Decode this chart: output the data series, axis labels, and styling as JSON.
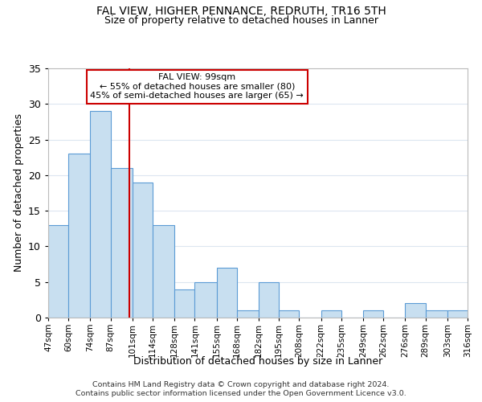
{
  "title1": "FAL VIEW, HIGHER PENNANCE, REDRUTH, TR16 5TH",
  "title2": "Size of property relative to detached houses in Lanner",
  "xlabel": "Distribution of detached houses by size in Lanner",
  "ylabel": "Number of detached properties",
  "bar_color": "#c8dff0",
  "bar_edge_color": "#5b9bd5",
  "vline_x": 99,
  "vline_color": "#cc0000",
  "annotation_title": "FAL VIEW: 99sqm",
  "annotation_line1": "← 55% of detached houses are smaller (80)",
  "annotation_line2": "45% of semi-detached houses are larger (65) →",
  "bin_edges": [
    47,
    60,
    74,
    87,
    101,
    114,
    128,
    141,
    155,
    168,
    182,
    195,
    208,
    222,
    235,
    249,
    262,
    276,
    289,
    303,
    316
  ],
  "bin_counts": [
    13,
    23,
    29,
    21,
    19,
    13,
    4,
    5,
    7,
    1,
    5,
    1,
    0,
    1,
    0,
    1,
    0,
    2,
    1,
    1
  ],
  "ylim": [
    0,
    35
  ],
  "yticks": [
    0,
    5,
    10,
    15,
    20,
    25,
    30,
    35
  ],
  "footnote1": "Contains HM Land Registry data © Crown copyright and database right 2024.",
  "footnote2": "Contains public sector information licensed under the Open Government Licence v3.0.",
  "background_color": "#ffffff",
  "grid_color": "#dce6f0"
}
